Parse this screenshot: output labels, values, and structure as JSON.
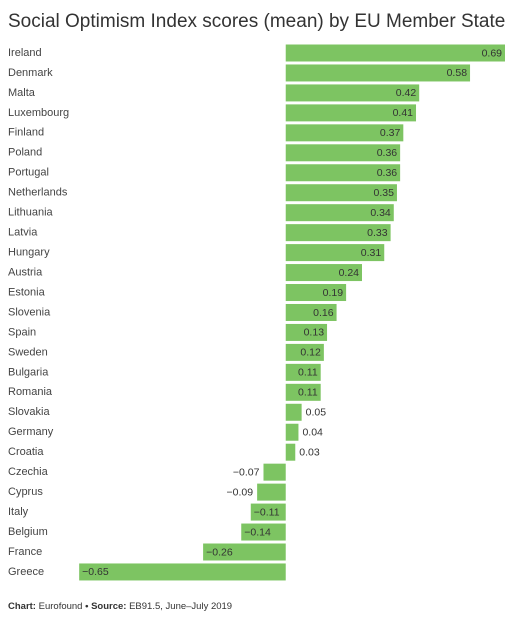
{
  "chart_data": {
    "type": "bar",
    "orientation": "horizontal",
    "title": "Social Optimism Index scores (mean) by EU Member State",
    "categories": [
      "Ireland",
      "Denmark",
      "Malta",
      "Luxembourg",
      "Finland",
      "Poland",
      "Portugal",
      "Netherlands",
      "Lithuania",
      "Latvia",
      "Hungary",
      "Austria",
      "Estonia",
      "Slovenia",
      "Spain",
      "Sweden",
      "Bulgaria",
      "Romania",
      "Slovakia",
      "Germany",
      "Croatia",
      "Czechia",
      "Cyprus",
      "Italy",
      "Belgium",
      "France",
      "Greece"
    ],
    "values": [
      0.69,
      0.58,
      0.42,
      0.41,
      0.37,
      0.36,
      0.36,
      0.35,
      0.34,
      0.33,
      0.31,
      0.24,
      0.19,
      0.16,
      0.13,
      0.12,
      0.11,
      0.11,
      0.05,
      0.04,
      0.03,
      -0.07,
      -0.09,
      -0.11,
      -0.14,
      -0.26,
      -0.65
    ],
    "value_labels": [
      "0.69",
      "0.58",
      "0.42",
      "0.41",
      "0.37",
      "0.36",
      "0.36",
      "0.35",
      "0.34",
      "0.33",
      "0.31",
      "0.24",
      "0.19",
      "0.16",
      "0.13",
      "0.12",
      "0.11",
      "0.11",
      "0.05",
      "0.04",
      "0.03",
      "−0.07",
      "−0.09",
      "−0.11",
      "−0.14",
      "−0.26",
      "−0.65"
    ],
    "color": "#7dc462",
    "xlim": [
      -0.66,
      0.69
    ]
  },
  "footer": {
    "chart_label": "Chart:",
    "chart": "Eurofound",
    "separator": "•",
    "source_label": "Source:",
    "source": "EB91.5, June–July 2019"
  }
}
